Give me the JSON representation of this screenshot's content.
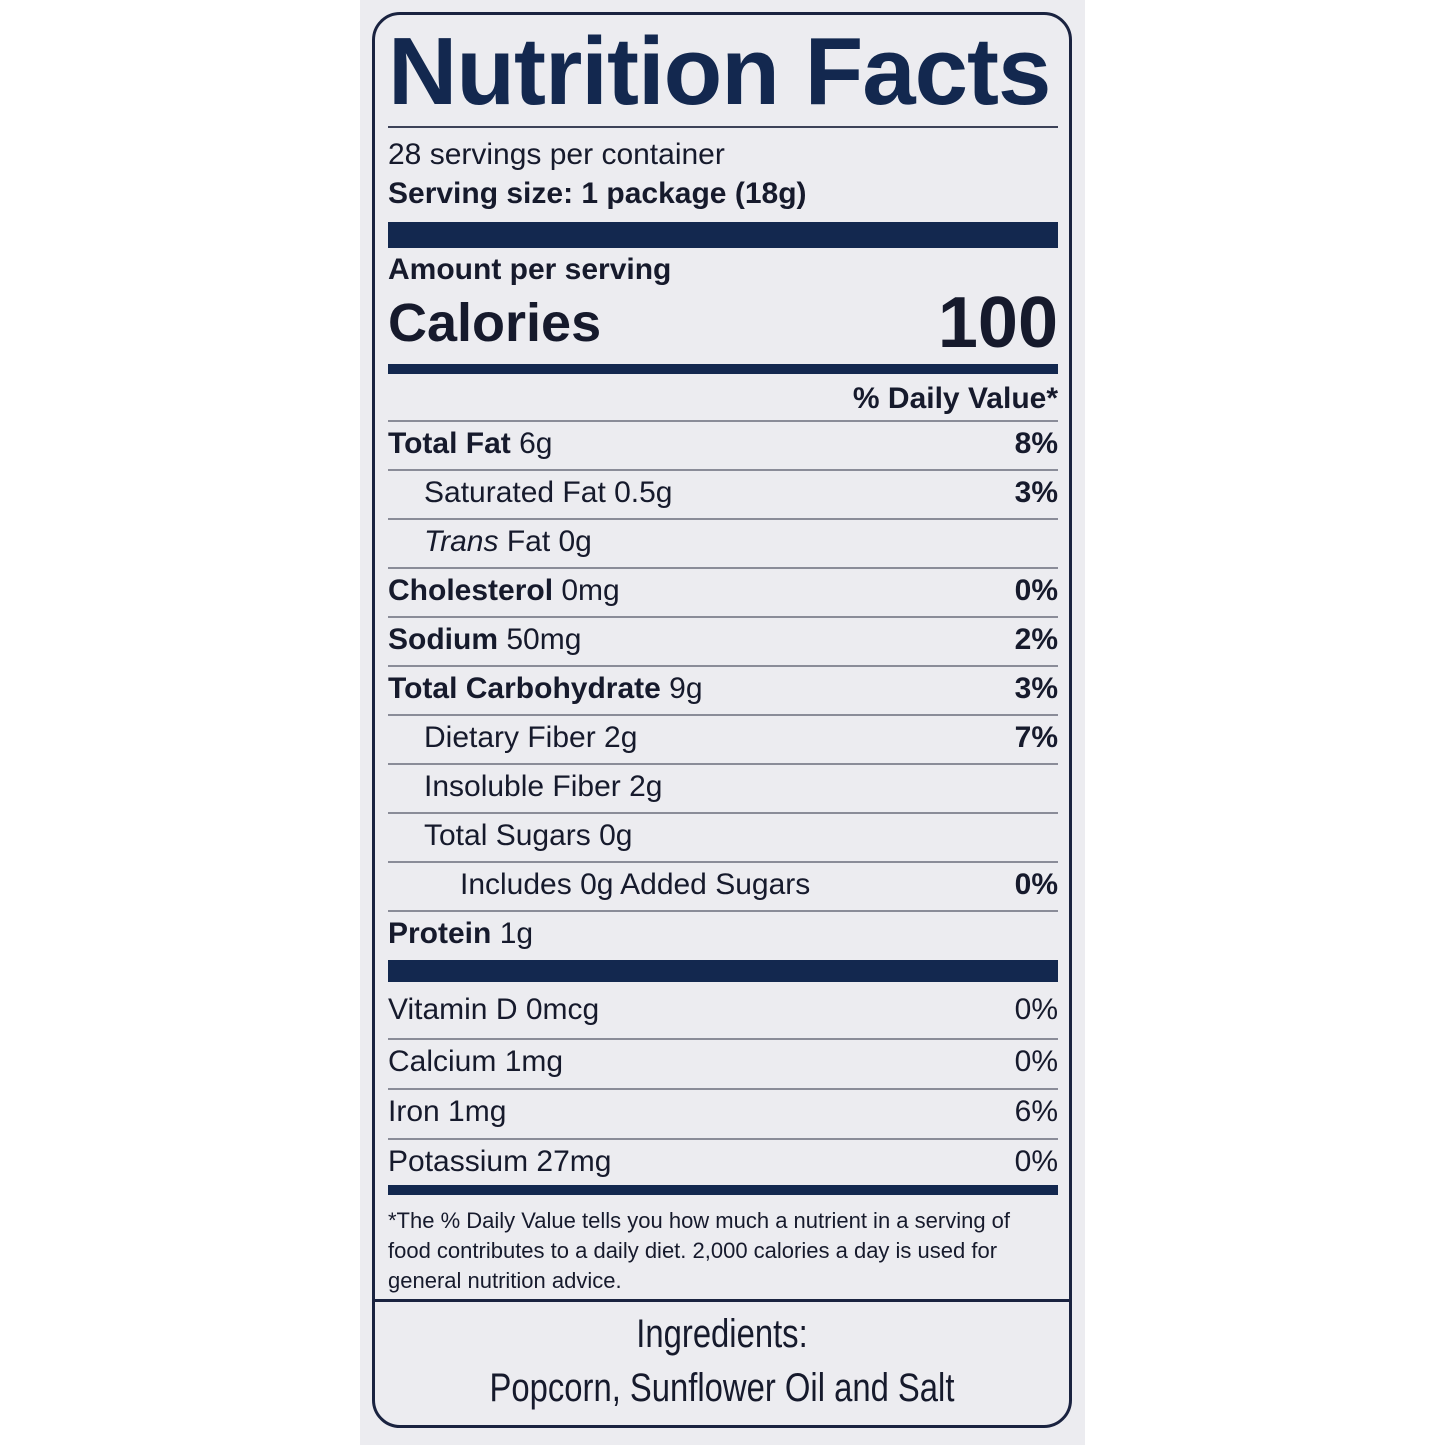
{
  "title": "Nutrition Facts",
  "servings_per_container": "28 servings per container",
  "serving_size": "Serving size: 1 package (18g)",
  "amount_per_serving": "Amount per serving",
  "calories_label": "Calories",
  "calories_value": "100",
  "daily_value_header": "% Daily Value*",
  "nutrients": [
    {
      "name": "Total Fat",
      "amount": "6g",
      "dv": "8%"
    },
    {
      "name": "Saturated Fat 0.5g",
      "amount": "",
      "dv": "3%"
    },
    {
      "name": "Trans",
      "amount": "Fat 0g",
      "dv": ""
    },
    {
      "name": "Cholesterol",
      "amount": "0mg",
      "dv": "0%"
    },
    {
      "name": "Sodium",
      "amount": "50mg",
      "dv": "2%"
    },
    {
      "name": "Total Carbohydrate",
      "amount": "9g",
      "dv": "3%"
    },
    {
      "name": "Dietary Fiber 2g",
      "amount": "",
      "dv": "7%"
    },
    {
      "name": "Insoluble Fiber 2g",
      "amount": "",
      "dv": ""
    },
    {
      "name": "Total Sugars 0g",
      "amount": "",
      "dv": ""
    },
    {
      "name": "Includes 0g Added Sugars",
      "amount": "",
      "dv": "0%"
    },
    {
      "name": "Protein",
      "amount": "1g",
      "dv": ""
    }
  ],
  "vitamins": [
    {
      "name": "Vitamin D 0mcg",
      "dv": "0%"
    },
    {
      "name": "Calcium 1mg",
      "dv": "0%"
    },
    {
      "name": "Iron 1mg",
      "dv": "6%"
    },
    {
      "name": "Potassium 27mg",
      "dv": "0%"
    }
  ],
  "footnote": "*The % Daily Value tells you how much a nutrient in a serving of food contributes to a daily diet. 2,000 calories a day is used for general nutrition advice.",
  "ingredients_label": "Ingredients:",
  "ingredients": "Popcorn, Sunflower Oil and Salt",
  "colors": {
    "navy": "#13284f",
    "panel": "#ececf0"
  }
}
